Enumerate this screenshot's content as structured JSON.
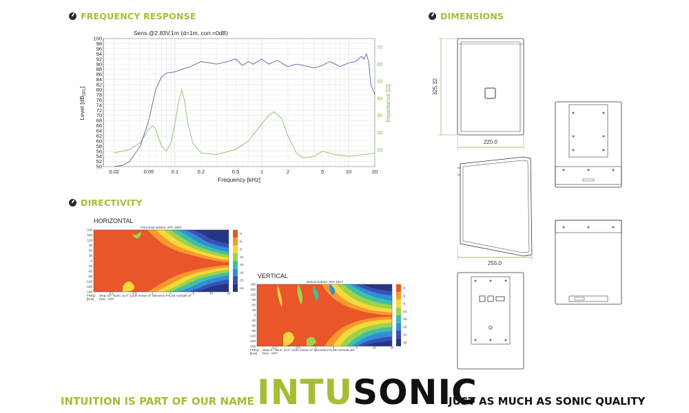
{
  "sections": {
    "frequency_response": "FREQUENCY RESPONSE",
    "directivity": "DIRECTIVITY",
    "dimensions": "DIMENSIONS"
  },
  "fr_chart": {
    "title": "Sens.@2.83V,1m  (d=1m, corr.=0dB)",
    "xlabel": "Frequency [kHz]",
    "ylabel_left": "Level [dB",
    "ylabel_left_sub": "SPL",
    "ylabel_left_end": "]",
    "ylabel_right": "Impedance [Ω]",
    "colors": {
      "spl": "#5560b0",
      "impedance": "#9cc87a",
      "axis_right": "#7ab04a"
    }
  },
  "chart_data": {
    "type": "line",
    "x_scale": "log",
    "xlim": [
      0.015,
      20
    ],
    "x_ticks": [
      "0.02",
      "0.05",
      "0.1",
      "0.2",
      "0.5",
      "1",
      "2",
      "5",
      "10",
      "20"
    ],
    "x_tick_values": [
      0.02,
      0.05,
      0.1,
      0.2,
      0.5,
      1,
      2,
      5,
      10,
      20
    ],
    "ylim_left": [
      50,
      100
    ],
    "y_ticks_left": [
      "100",
      "98",
      "96",
      "94",
      "92",
      "90",
      "88",
      "86",
      "84",
      "82",
      "80",
      "78",
      "76",
      "74",
      "72",
      "70",
      "68",
      "66",
      "64",
      "62",
      "60",
      "58",
      "56",
      "54",
      "52",
      "50"
    ],
    "ylim_right": [
      0,
      75
    ],
    "y_ticks_right": [
      "70",
      "60",
      "50",
      "40",
      "30",
      "20",
      "10"
    ],
    "series": [
      {
        "x": [
          0.02,
          0.025,
          0.03,
          0.04,
          0.05,
          0.06,
          0.07,
          0.08,
          0.1,
          0.12,
          0.15,
          0.2,
          0.25,
          0.3,
          0.4,
          0.5,
          0.6,
          0.7,
          0.8,
          1.0,
          1.2,
          1.5,
          2.0,
          2.5,
          3.0,
          4.0,
          5.0,
          6.0,
          7.0,
          8.0,
          10.0,
          12.0,
          14.0,
          15.0,
          16.0,
          17.0,
          18.0,
          20.0
        ],
        "values": [
          50,
          50.5,
          52,
          58,
          68,
          80,
          85,
          86.5,
          87,
          88,
          89,
          91,
          90.5,
          90,
          91,
          92,
          89.5,
          91,
          90,
          92,
          90,
          91.5,
          89,
          90,
          89.5,
          88.5,
          89.5,
          91,
          90,
          89,
          90.5,
          91,
          93,
          92,
          94,
          91,
          82,
          78
        ]
      },
      {
        "x": [
          0.02,
          0.03,
          0.04,
          0.05,
          0.055,
          0.06,
          0.07,
          0.08,
          0.09,
          0.1,
          0.11,
          0.12,
          0.13,
          0.14,
          0.16,
          0.2,
          0.3,
          0.5,
          0.7,
          1.0,
          1.2,
          1.4,
          1.7,
          2.0,
          2.5,
          3.0,
          4.0,
          5.0,
          7.0,
          10.0,
          15.0,
          20.0
        ],
        "values": [
          8,
          10,
          14,
          22,
          24,
          22,
          12,
          9,
          14,
          25,
          38,
          45,
          38,
          26,
          14,
          8,
          7,
          10,
          15,
          25,
          30,
          32,
          28,
          18,
          8,
          5,
          6,
          9,
          7,
          6,
          7,
          8
        ]
      }
    ]
  },
  "directivity": {
    "horizontal_label": "HORIZONTAL",
    "vertical_label": "VERTICAL",
    "h_chart_title": "Horizontal isobars: XFP 18DT",
    "v_chart_title": "Vertical isobars: XFP 18VT",
    "y_ticks": [
      "180",
      "150",
      "120",
      "90",
      "60",
      "30",
      "0",
      "-30",
      "-60",
      "-90",
      "-120",
      "-150",
      "-180"
    ],
    "freq_label": "FREQ.",
    "freq_unit": "[kHz]",
    "h_footer": "Step=10°   Norm. to 0°   Cycle mover=0°   Mirrored=FALSE   Azimuth=0°",
    "v_footer": "Step=5°   Norm. to 0°   Cycle mover=0°   Mirrored=FALSE   Azimuth=90°",
    "prec": "Prec.: OFF",
    "legend": [
      "-3",
      "-6",
      "-9",
      "-12",
      "-15",
      "-18",
      "-21",
      "-24"
    ],
    "colors": [
      "#e8562a",
      "#f59a2a",
      "#f5d93a",
      "#9fd24a",
      "#3fbfa8",
      "#2f8fd6",
      "#3a4fb8",
      "#263680"
    ]
  },
  "dimensions": {
    "height": "325.32",
    "width": "225.0",
    "depth": "255.0"
  },
  "footer": {
    "left": "INTUITION IS PART OF OUR NAME",
    "logo_a": "INTU",
    "logo_b": "SONIC",
    "right": "JUST AS MUCH AS SONIC QUALITY"
  }
}
